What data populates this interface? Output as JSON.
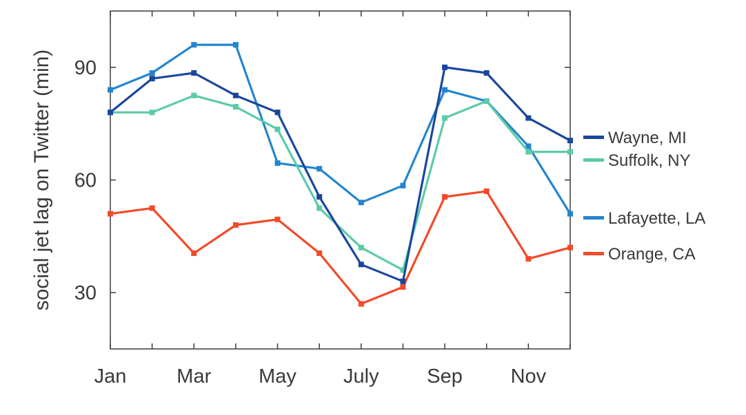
{
  "chart_data": {
    "type": "line",
    "title": "",
    "xlabel": "",
    "ylabel": "social jet lag on Twitter (min)",
    "x": [
      1,
      2,
      3,
      4,
      5,
      6,
      7,
      8,
      9,
      10,
      11,
      12
    ],
    "x_tick_positions": [
      1,
      3,
      5,
      7,
      9,
      11
    ],
    "x_tick_labels": [
      "Jan",
      "Mar",
      "May",
      "July",
      "Sep",
      "Nov"
    ],
    "xlim": [
      1,
      12
    ],
    "y_ticks": [
      30,
      60,
      90
    ],
    "ylim": [
      15,
      105
    ],
    "grid": false,
    "legend_position": "right",
    "series": [
      {
        "name": "Wayne, MI",
        "color": "#1a479c",
        "values": [
          78,
          87,
          88.5,
          82.5,
          78,
          55.5,
          37.5,
          33,
          90,
          88.5,
          76.5,
          70.5
        ]
      },
      {
        "name": "Suffolk, NY",
        "color": "#5ccaa8",
        "values": [
          78,
          78,
          82.5,
          79.5,
          73.5,
          52.5,
          42,
          36,
          76.5,
          81,
          67.5,
          67.5
        ]
      },
      {
        "name": "Lafayette, LA",
        "color": "#2385cf",
        "values": [
          84,
          88.5,
          96,
          96,
          64.5,
          63,
          54,
          58.5,
          84,
          81,
          69,
          51
        ]
      },
      {
        "name": "Orange, CA",
        "color": "#f24a2a",
        "values": [
          51,
          52.5,
          40.5,
          48,
          49.5,
          40.5,
          27,
          31.5,
          55.5,
          57,
          39,
          42
        ]
      }
    ]
  }
}
